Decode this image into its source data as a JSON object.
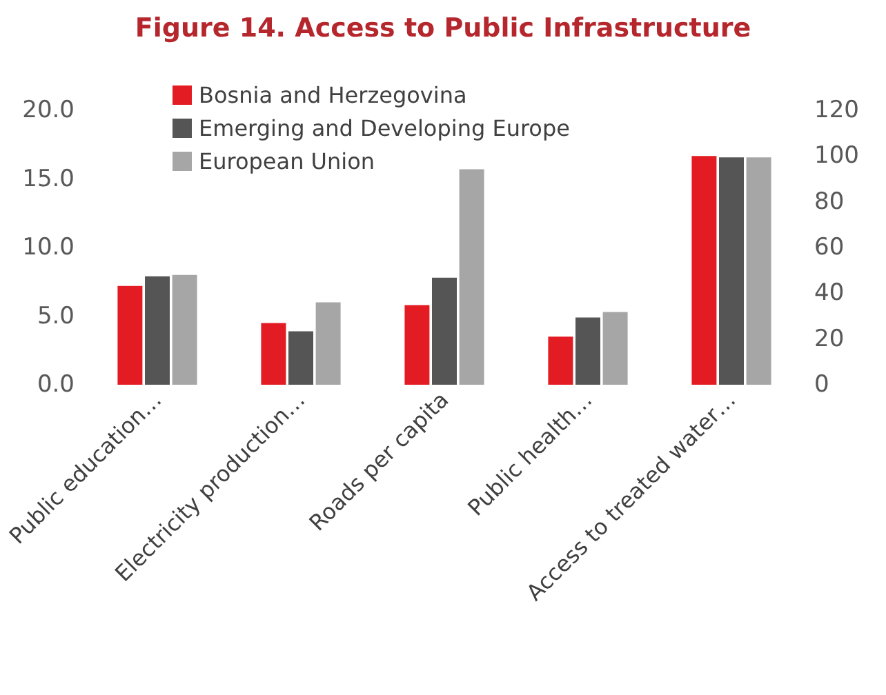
{
  "chart_data": {
    "type": "bar",
    "title": "Figure 14. Access to Public Infrastructure",
    "categories": [
      "Public education…",
      "Electricity production…",
      "Roads per capita",
      "Public health…",
      "Access to treated water…"
    ],
    "series": [
      {
        "name": "Bosnia and Herzegovina",
        "color": "#e31c23",
        "values": [
          7.2,
          4.5,
          5.8,
          3.5,
          null
        ]
      },
      {
        "name": "Emerging and Developing Europe",
        "color": "#555555",
        "values": [
          7.9,
          3.9,
          7.8,
          4.9,
          null
        ]
      },
      {
        "name": "European Union",
        "color": "#a6a6a6",
        "values": [
          8.0,
          6.0,
          15.7,
          5.3,
          null
        ]
      },
      {
        "color": "#e31c23",
        "axis": "y2",
        "values": [
          null,
          null,
          null,
          null,
          100
        ]
      },
      {
        "color": "#555555",
        "axis": "y2",
        "values": [
          null,
          null,
          null,
          null,
          99.4
        ]
      },
      {
        "color": "#a6a6a6",
        "axis": "y2",
        "values": [
          null,
          null,
          null,
          null,
          99.4
        ]
      }
    ],
    "ylim": [
      0,
      20
    ],
    "yticks": [
      {
        "value": 0,
        "label": "0.0"
      },
      {
        "value": 5,
        "label": "5.0"
      },
      {
        "value": 10,
        "label": "10.0"
      },
      {
        "value": 15,
        "label": "15.0"
      },
      {
        "value": 20,
        "label": "20.0"
      }
    ],
    "y2lim": [
      0,
      120
    ],
    "y2ticks": [
      0,
      20,
      40,
      60,
      80,
      100,
      120
    ],
    "grid": false,
    "legend": "top left"
  }
}
